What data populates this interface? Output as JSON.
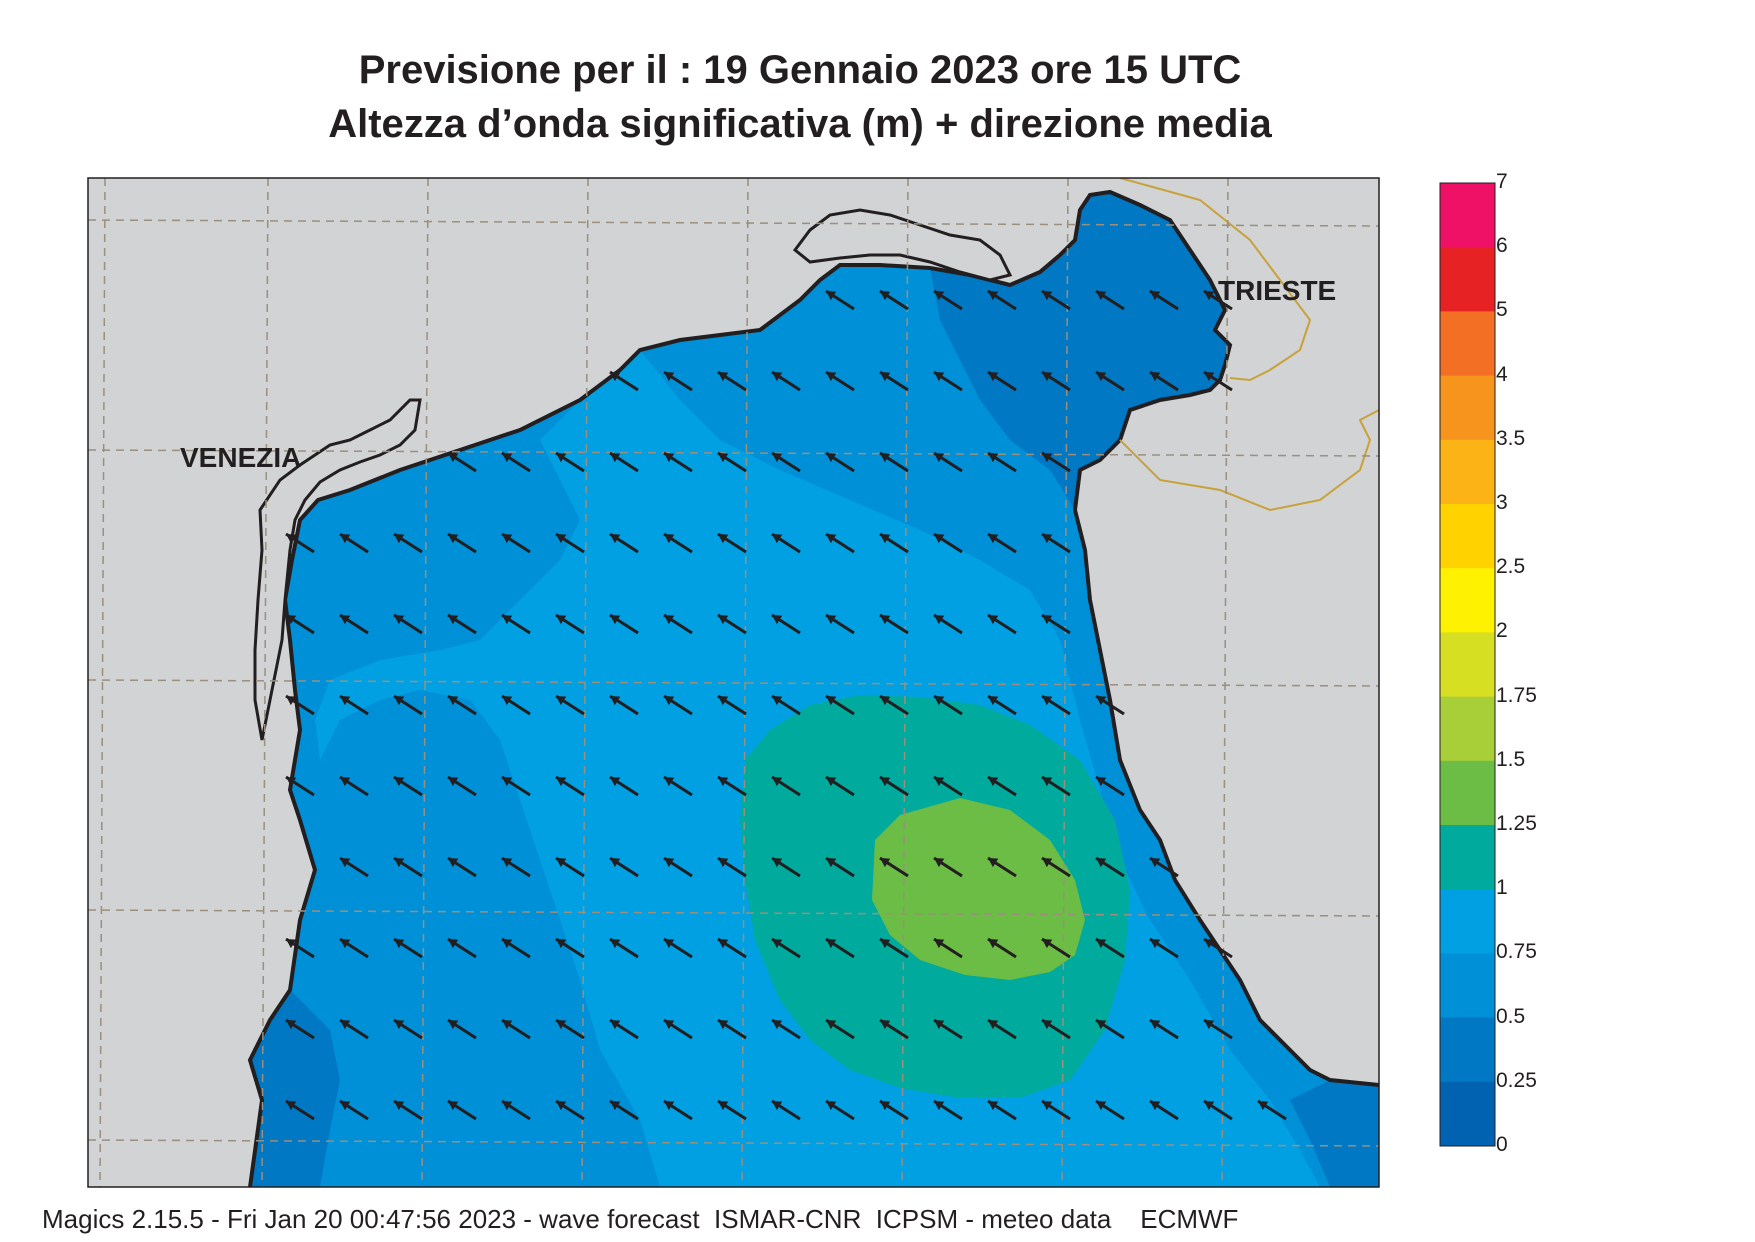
{
  "title": {
    "line1": "Previsione per il  :  19  Gennaio  2023   ore 15 UTC",
    "line2": "Altezza d’onda significativa (m) + direzione media"
  },
  "cities": [
    "VENEZIA",
    "TRIESTE"
  ],
  "legend": {
    "labels": [
      "7",
      "6",
      "5",
      "4",
      "3.5",
      "3",
      "2.5",
      "2",
      "1.75",
      "1.5",
      "1.25",
      "1",
      "0.75",
      "0.5",
      "0.25",
      "0"
    ],
    "colors": [
      "#ee1166",
      "#e62224",
      "#f36f24",
      "#f7941d",
      "#fbb316",
      "#ffd200",
      "#fff200",
      "#d7df23",
      "#a9cf38",
      "#6cbd45",
      "#00aa9d",
      "#00a0e3",
      "#0090d8",
      "#0078c4",
      "#0062b0"
    ]
  },
  "field": {
    "variable": "significant wave height (m)",
    "max_region_class": "1.25-1.5",
    "arrow_direction": "north-west"
  },
  "footer": "Magics 2.15.5 - Fri Jan 20 00:47:56 2023 - wave forecast  ISMAR-CNR  ICPSM - meteo data    ECMWF"
}
